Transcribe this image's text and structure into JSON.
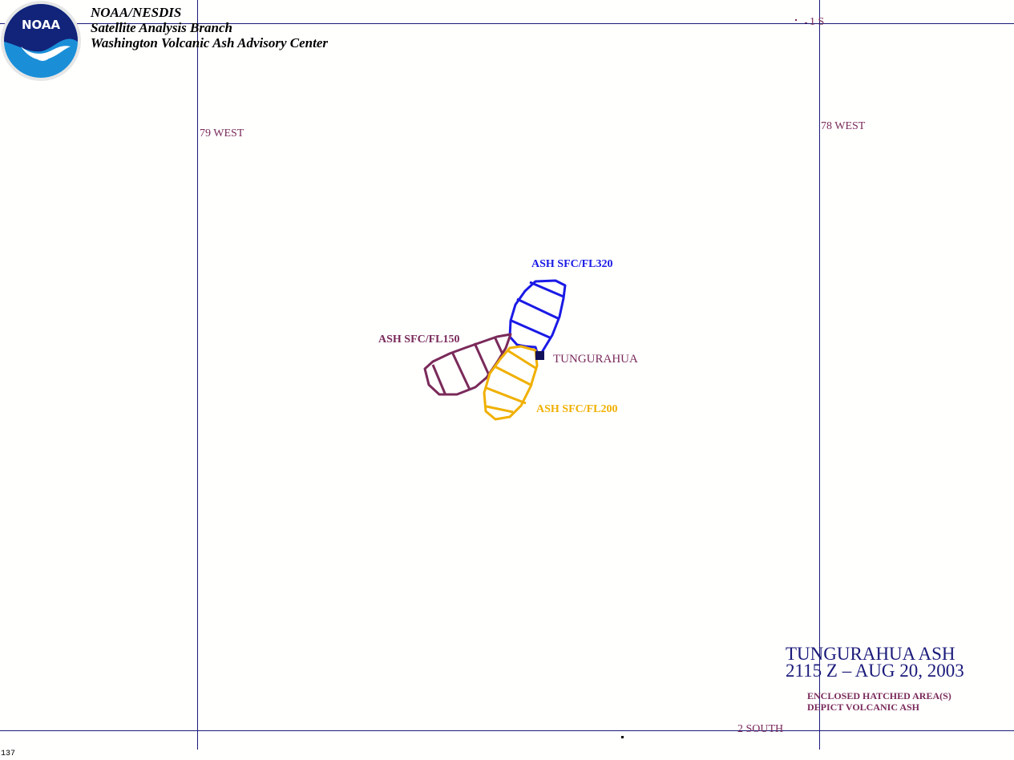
{
  "header": {
    "agency": "NOAA/NESDIS",
    "branch": "Satellite Analysis Branch",
    "center": "Washington Volcanic Ash Advisory Center",
    "logo_text": "NOAA"
  },
  "grid_labels": {
    "lon_79": "79 WEST",
    "lon_78": "78 WEST",
    "lat_1s": "1 S",
    "lat_2s": "2 SOUTH"
  },
  "volcano": {
    "name": "TUNGURAHUA"
  },
  "ash_areas": [
    {
      "label": "ASH SFC/FL320",
      "color": "#1a1ae6"
    },
    {
      "label": "ASH SFC/FL150",
      "color": "#7a2a5a"
    },
    {
      "label": "ASH SFC/FL200",
      "color": "#f0b000"
    }
  ],
  "title": {
    "line1": "TUNGURAHUA ASH",
    "line2": "2115 Z – AUG 20, 2003"
  },
  "legend_note": {
    "line1": "ENCLOSED HATCHED AREA(S)",
    "line2": "DEPICT VOLCANIC ASH"
  },
  "frame_number": "137",
  "colors": {
    "grid_line": "#1a1a7a",
    "grid_label": "#7a2a5a",
    "logo_blue": "#1a8fd8",
    "logo_navy": "#12237a"
  }
}
